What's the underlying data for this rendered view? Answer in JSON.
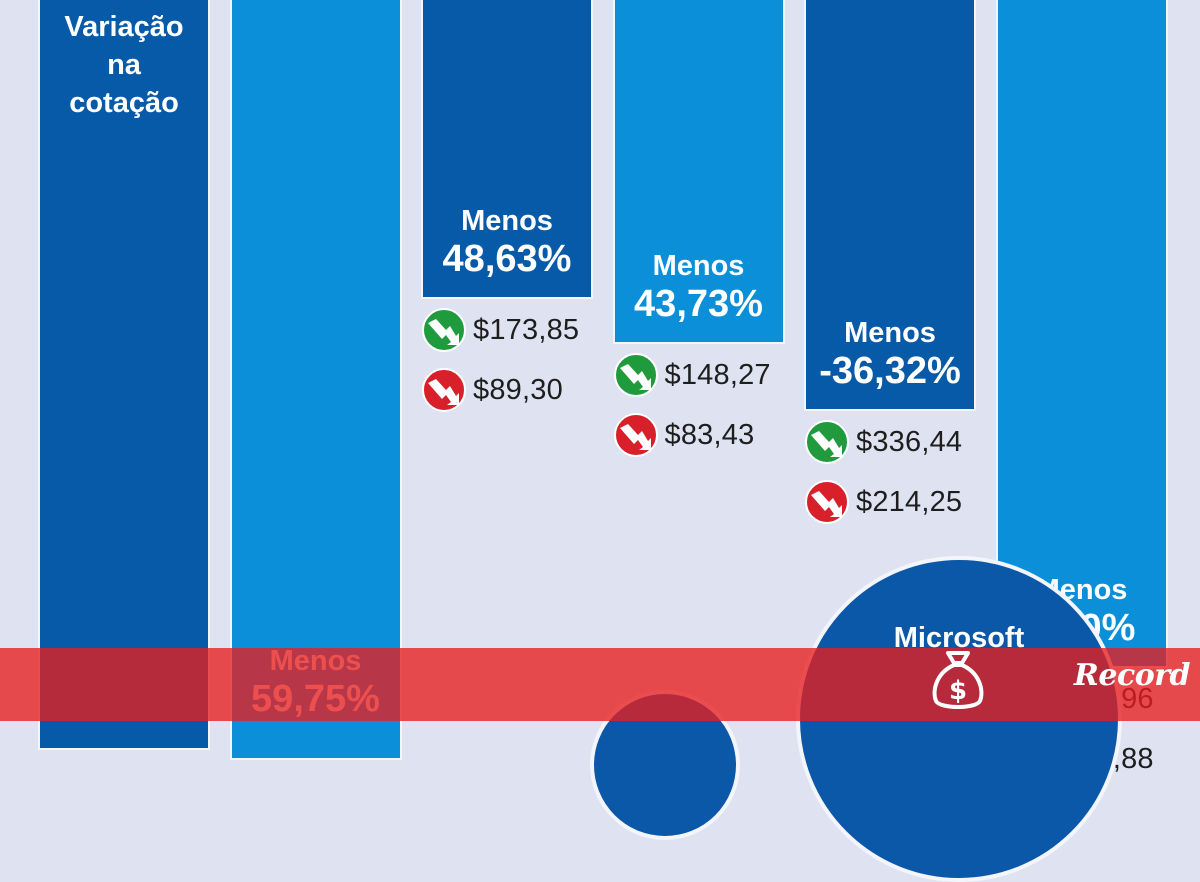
{
  "chart_data": {
    "type": "bar",
    "title_lines": [
      "Variação",
      "na",
      "cotação"
    ],
    "unit": "%",
    "colors": {
      "dark": "#075aa8",
      "light": "#0b8fd8",
      "up": "#1f9b3e",
      "down": "#d8202a"
    },
    "bars": [
      {
        "change_prefix": "Menos",
        "change_value": "59,75%",
        "change": 59.75,
        "prices": []
      },
      {
        "change_prefix": "Menos",
        "change_value": "48,63%",
        "change": 48.63,
        "prices": [
          {
            "trend": "up",
            "value": "$173,85"
          },
          {
            "trend": "down",
            "value": "$89,30"
          }
        ]
      },
      {
        "change_prefix": "Menos",
        "change_value": "43,73%",
        "change": 43.73,
        "prices": [
          {
            "trend": "up",
            "value": "$148,27"
          },
          {
            "trend": "down",
            "value": "$83,43"
          }
        ]
      },
      {
        "change_prefix": "Menos",
        "change_value": "-36,32%",
        "change": 36.32,
        "prices": [
          {
            "trend": "up",
            "value": "$336,44"
          },
          {
            "trend": "down",
            "value": "$214,25"
          }
        ]
      },
      {
        "change_prefix": "Menos",
        "change_value": "8,00%",
        "change": 8.0,
        "prices": [
          {
            "trend": "up",
            "value": "$150,96"
          },
          {
            "trend": "down",
            "value": "$138,88"
          }
        ]
      }
    ],
    "company_labels": [
      "Microsoft"
    ]
  },
  "watermark": {
    "brand": "Record",
    "icon": "money-bag-icon",
    "banner_color": "#e81e1e"
  }
}
